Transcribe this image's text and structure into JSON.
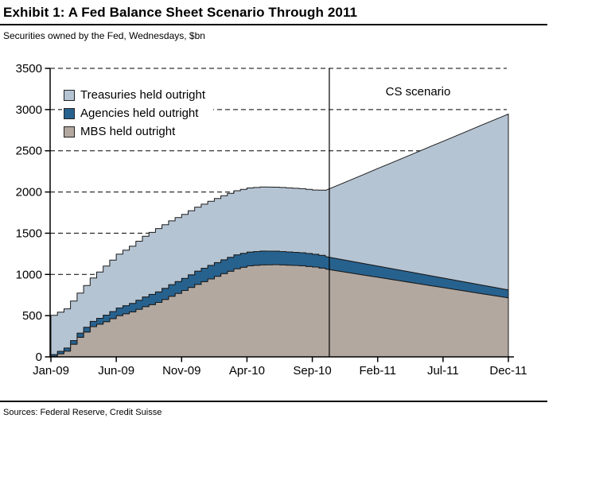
{
  "header": {
    "title": "Exhibit 1: A Fed Balance Sheet Scenario Through 2011",
    "subtitle": "Securities owned by the Fed, Wednesdays, $bn"
  },
  "footer": {
    "sources": "Sources: Federal Reserve, Credit Suisse"
  },
  "colors": {
    "treasuries_fill": "#b5c4d3",
    "agencies_fill": "#27628f",
    "mbs_fill": "#b2a8a0",
    "outline": "#1a1a1a",
    "axis": "#000000",
    "grid": "#000000",
    "scenario_line": "#000000"
  },
  "chart_data": {
    "type": "area",
    "stacked": true,
    "title": "Exhibit 1: A Fed Balance Sheet Scenario Through 2011",
    "subtitle": "Securities owned by the Fed, Wednesdays, $bn",
    "ylabel": "$bn",
    "ylim": [
      0,
      3500
    ],
    "yticks": [
      0,
      500,
      1000,
      1500,
      2000,
      2500,
      3000,
      3500
    ],
    "grid": "dashed-horizontal",
    "legend_position": "top-left-inside",
    "x_unit": "month",
    "x_range": [
      "Jan-09",
      "Dec-11"
    ],
    "x_tick_labels": [
      "Jan-09",
      "Jun-09",
      "Nov-09",
      "Apr-10",
      "Sep-10",
      "Feb-11",
      "Jul-11",
      "Dec-11"
    ],
    "x_tick_month_indices": [
      0,
      5,
      10,
      15,
      20,
      25,
      30,
      35
    ],
    "historical_through_month_index": 21,
    "scenario_divider_month_index": 21.3,
    "scenario_label": "CS scenario",
    "series": [
      {
        "name": "MBS held outright",
        "color": "#b2a8a0",
        "values": [
          6,
          69,
          237,
          366,
          427,
          500,
          546,
          609,
          660,
          735,
          805,
          880,
          945,
          1010,
          1069,
          1104,
          1117,
          1118,
          1113,
          1105,
          1090,
          1066,
          1041,
          1016,
          991,
          966,
          941,
          916,
          891,
          866,
          841,
          816,
          791,
          766,
          741,
          716
        ]
      },
      {
        "name": "Agencies held outright",
        "color": "#27628f",
        "values": [
          22,
          38,
          51,
          64,
          79,
          93,
          102,
          118,
          129,
          141,
          147,
          160,
          165,
          167,
          169,
          168,
          166,
          164,
          160,
          158,
          155,
          152,
          148,
          144,
          140,
          136,
          132,
          128,
          124,
          120,
          116,
          112,
          108,
          104,
          100,
          96
        ]
      },
      {
        "name": "Treasuries held outright",
        "color": "#b5c4d3",
        "values": [
          475,
          475,
          486,
          526,
          595,
          653,
          695,
          736,
          767,
          774,
          777,
          777,
          777,
          777,
          777,
          777,
          777,
          777,
          777,
          777,
          779,
          801,
          896,
          991,
          1086,
          1182,
          1277,
          1372,
          1467,
          1563,
          1658,
          1753,
          1848,
          1944,
          2039,
          2134
        ]
      }
    ]
  }
}
